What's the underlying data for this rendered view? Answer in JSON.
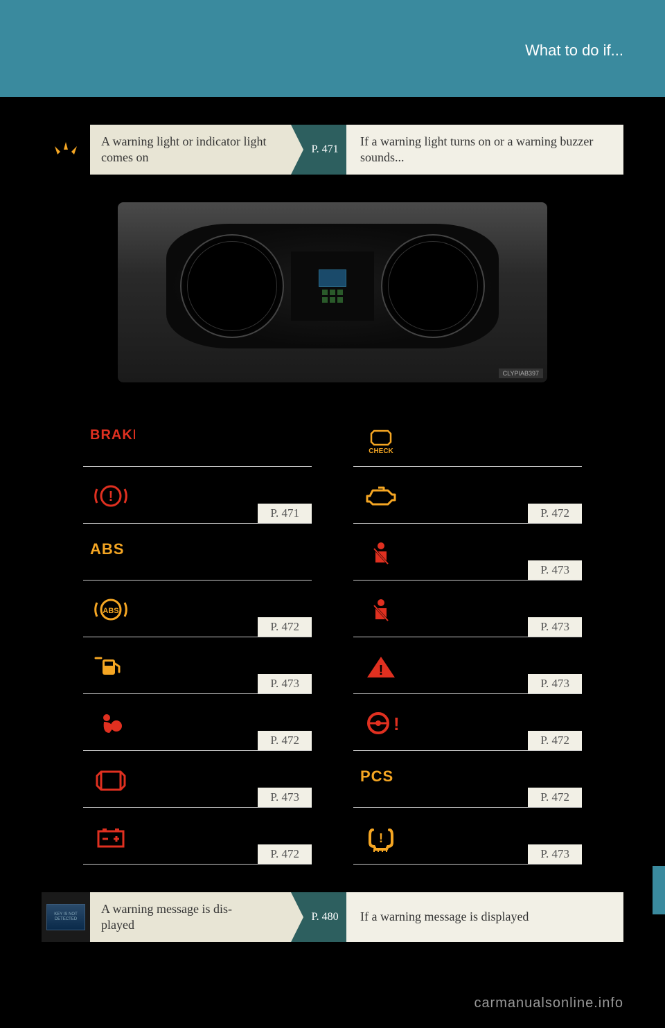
{
  "header": {
    "title": "What to do if..."
  },
  "nav1": {
    "left": "A warning light or indicator light comes on",
    "page": "P. 471",
    "right": "If a warning light turns on or a warning buzzer sounds..."
  },
  "photo": {
    "label": "CLYPIAB397"
  },
  "warnings": {
    "left": [
      {
        "icon": "brake-text",
        "page": ""
      },
      {
        "icon": "brake-circle",
        "page": "P. 471"
      },
      {
        "icon": "abs-text",
        "page": ""
      },
      {
        "icon": "abs-circle",
        "page": "P. 472"
      },
      {
        "icon": "fuel",
        "page": "P. 473"
      },
      {
        "icon": "airbag",
        "page": "P. 472"
      },
      {
        "icon": "door",
        "page": "P. 473"
      },
      {
        "icon": "battery",
        "page": "P. 472"
      }
    ],
    "right": [
      {
        "icon": "check-engine-text",
        "page": ""
      },
      {
        "icon": "check-engine",
        "page": "P. 472"
      },
      {
        "icon": "seatbelt",
        "page": "P. 473"
      },
      {
        "icon": "seatbelt",
        "page": "P. 473"
      },
      {
        "icon": "warning-triangle",
        "page": "P. 473"
      },
      {
        "icon": "steering",
        "page": "P. 472"
      },
      {
        "icon": "pcs-text",
        "page": "P. 472"
      },
      {
        "icon": "tire",
        "page": "P. 473"
      }
    ]
  },
  "nav2": {
    "left": "A warning message is dis-\nplayed",
    "page": "P. 480",
    "right": "If a warning message is displayed",
    "screen": "KEY IS NOT DETECTED"
  },
  "colors": {
    "red": "#e03020",
    "amber": "#f5a623",
    "teal": "#3a8a9e",
    "darkteal": "#2d5f5f",
    "beige": "#e8e5d5",
    "lightbeige": "#f2f0e6"
  },
  "watermark": "carmanualsonline.info"
}
